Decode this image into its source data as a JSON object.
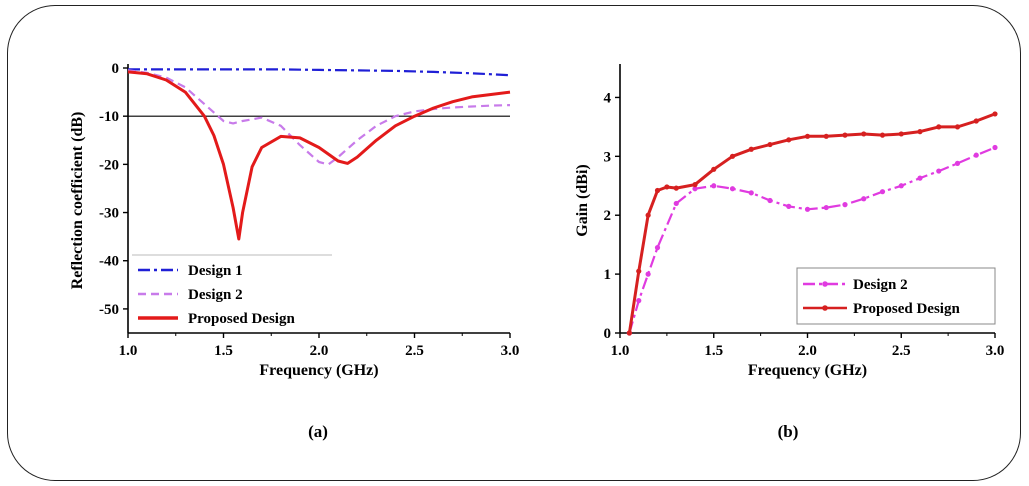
{
  "chart_data": [
    {
      "type": "line",
      "caption": "(a)",
      "xlabel": "Frequency (GHz)",
      "ylabel": "Reflection coefficient (dB)",
      "xlim": [
        1.0,
        3.0
      ],
      "ylim": [
        -55,
        0
      ],
      "xticks": [
        "1.0",
        "1.5",
        "2.0",
        "2.5",
        "3.0"
      ],
      "yticks": [
        "0",
        "-10",
        "-20",
        "-30",
        "-40",
        "-50"
      ],
      "reference_line_y": -10,
      "legend_position": "bottom-left",
      "series": [
        {
          "name": "Design 1",
          "color": "#1f1fd6",
          "style": "dash-dot",
          "x": [
            1.0,
            1.2,
            1.4,
            1.6,
            1.8,
            2.0,
            2.2,
            2.4,
            2.6,
            2.8,
            3.0
          ],
          "y": [
            -0.3,
            -0.3,
            -0.3,
            -0.3,
            -0.3,
            -0.4,
            -0.5,
            -0.6,
            -0.8,
            -1.1,
            -1.5
          ]
        },
        {
          "name": "Design 2",
          "color": "#c87bea",
          "style": "dash",
          "x": [
            1.0,
            1.1,
            1.2,
            1.3,
            1.4,
            1.5,
            1.55,
            1.6,
            1.7,
            1.8,
            1.9,
            2.0,
            2.05,
            2.1,
            2.2,
            2.3,
            2.4,
            2.5,
            2.6,
            2.7,
            2.8,
            2.9,
            3.0
          ],
          "y": [
            -0.5,
            -1,
            -2,
            -4,
            -7.5,
            -11,
            -11.5,
            -11,
            -10.3,
            -12,
            -16,
            -19.5,
            -20,
            -18.5,
            -15,
            -12,
            -10,
            -9,
            -8.5,
            -8.2,
            -8,
            -7.8,
            -7.7
          ]
        },
        {
          "name": "Proposed Design",
          "color": "#e31a1a",
          "style": "solid",
          "x": [
            1.0,
            1.1,
            1.2,
            1.3,
            1.4,
            1.45,
            1.5,
            1.55,
            1.58,
            1.6,
            1.65,
            1.7,
            1.8,
            1.9,
            2.0,
            2.1,
            2.15,
            2.2,
            2.3,
            2.4,
            2.5,
            2.6,
            2.7,
            2.8,
            2.9,
            3.0
          ],
          "y": [
            -0.8,
            -1.2,
            -2.5,
            -5,
            -10,
            -14,
            -20,
            -29,
            -35.5,
            -30,
            -20.5,
            -16.5,
            -14.2,
            -14.5,
            -16.5,
            -19.3,
            -19.8,
            -18.5,
            -15,
            -12,
            -10,
            -8.3,
            -7,
            -6,
            -5.5,
            -5
          ]
        }
      ]
    },
    {
      "type": "line",
      "caption": "(b)",
      "xlabel": "Frequency (GHz)",
      "ylabel": "Gain (dBi)",
      "xlim": [
        1.0,
        3.0
      ],
      "ylim": [
        0,
        4.5
      ],
      "xticks": [
        "1.0",
        "1.5",
        "2.0",
        "2.5",
        "3.0"
      ],
      "yticks": [
        "0",
        "1",
        "2",
        "3",
        "4"
      ],
      "legend_position": "bottom-right",
      "series": [
        {
          "name": "Design 2",
          "color": "#e03be0",
          "style": "dash-dot",
          "marker": "dot",
          "x": [
            1.05,
            1.1,
            1.15,
            1.2,
            1.3,
            1.4,
            1.5,
            1.6,
            1.7,
            1.8,
            1.9,
            2.0,
            2.1,
            2.2,
            2.3,
            2.4,
            2.5,
            2.6,
            2.7,
            2.8,
            2.9,
            3.0
          ],
          "y": [
            0.0,
            0.55,
            1.0,
            1.45,
            2.2,
            2.45,
            2.5,
            2.45,
            2.38,
            2.25,
            2.15,
            2.1,
            2.13,
            2.18,
            2.28,
            2.4,
            2.5,
            2.63,
            2.75,
            2.88,
            3.02,
            3.15
          ]
        },
        {
          "name": "Proposed Design",
          "color": "#d62020",
          "style": "solid",
          "marker": "dot",
          "x": [
            1.05,
            1.1,
            1.15,
            1.2,
            1.25,
            1.3,
            1.4,
            1.5,
            1.6,
            1.7,
            1.8,
            1.9,
            2.0,
            2.1,
            2.2,
            2.3,
            2.4,
            2.5,
            2.6,
            2.7,
            2.8,
            2.9,
            3.0
          ],
          "y": [
            0.0,
            1.05,
            2.0,
            2.42,
            2.48,
            2.46,
            2.52,
            2.78,
            3.0,
            3.12,
            3.2,
            3.28,
            3.34,
            3.34,
            3.36,
            3.38,
            3.36,
            3.38,
            3.42,
            3.5,
            3.5,
            3.6,
            3.72
          ]
        }
      ]
    }
  ]
}
